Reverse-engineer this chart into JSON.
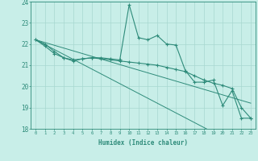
{
  "xlabel": "Humidex (Indice chaleur)",
  "x": [
    0,
    1,
    2,
    3,
    4,
    5,
    6,
    7,
    8,
    9,
    10,
    11,
    12,
    13,
    14,
    15,
    16,
    17,
    18,
    19,
    20,
    21,
    22,
    23
  ],
  "line1_y": [
    22.2,
    22.0,
    21.65,
    21.35,
    21.25,
    21.3,
    21.35,
    21.35,
    21.3,
    21.25,
    23.85,
    22.3,
    22.2,
    22.4,
    22.0,
    21.95,
    20.75,
    20.2,
    20.2,
    20.3,
    19.1,
    19.8,
    18.5,
    18.5
  ],
  "line2_y": [
    22.2,
    21.9,
    21.55,
    21.35,
    21.2,
    21.3,
    21.35,
    21.3,
    21.25,
    21.2,
    21.15,
    21.1,
    21.05,
    21.0,
    20.9,
    20.8,
    20.7,
    20.5,
    20.3,
    20.15,
    20.05,
    19.9,
    19.0,
    18.5
  ],
  "trend1_y": [
    22.2,
    21.97,
    21.74,
    21.51,
    21.28,
    21.05,
    20.82,
    20.59,
    20.36,
    20.13,
    19.9,
    19.67,
    19.44,
    19.21,
    18.98,
    18.75,
    18.52,
    18.29,
    18.06,
    17.83,
    17.6,
    17.37,
    17.14,
    16.91
  ],
  "trend2_y": [
    22.2,
    22.07,
    21.94,
    21.81,
    21.68,
    21.55,
    21.42,
    21.29,
    21.16,
    21.03,
    20.9,
    20.77,
    20.64,
    20.51,
    20.38,
    20.25,
    20.12,
    19.99,
    19.86,
    19.73,
    19.6,
    19.47,
    19.34,
    19.21
  ],
  "line_color": "#2e8b7a",
  "bg_color": "#c8eee8",
  "grid_color": "#a8d8d0",
  "ylim": [
    18,
    24
  ],
  "yticks": [
    18,
    19,
    20,
    21,
    22,
    23,
    24
  ],
  "xlim": [
    -0.5,
    23.5
  ],
  "xticks": [
    0,
    1,
    2,
    3,
    4,
    5,
    6,
    7,
    8,
    9,
    10,
    11,
    12,
    13,
    14,
    15,
    16,
    17,
    18,
    19,
    20,
    21,
    22,
    23
  ]
}
